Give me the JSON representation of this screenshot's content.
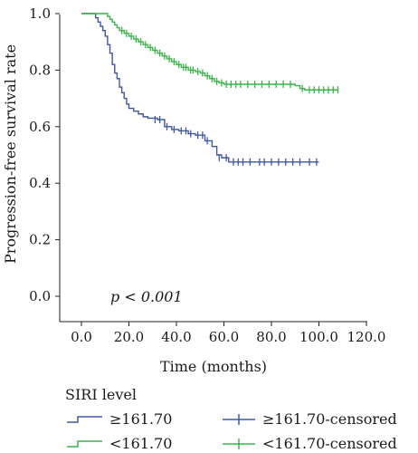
{
  "chart_data": {
    "type": "line",
    "subtype": "kaplan-meier",
    "xlabel": "Time (months)",
    "ylabel": "Progression-free survival rate",
    "xlim": [
      0,
      120
    ],
    "ylim": [
      0,
      1
    ],
    "xticks": [
      "0.0",
      "20.0",
      "40.0",
      "60.0",
      "80.0",
      "100.0",
      "120.0"
    ],
    "yticks": [
      "0.0",
      "0.2",
      "0.4",
      "0.6",
      "0.8",
      "1.0"
    ],
    "grid": false,
    "annotation": "p < 0.001",
    "legend": {
      "title": "SIRI level",
      "placement": "bottom",
      "entries": [
        "≥161.70",
        "<161.70",
        "≥161.70-censored",
        "<161.70-censored"
      ]
    },
    "series": [
      {
        "name": "≥161.70",
        "color": "#3f57a8",
        "steps": [
          [
            0,
            1.0
          ],
          [
            5,
            1.0
          ],
          [
            6,
            0.985
          ],
          [
            7,
            0.97
          ],
          [
            8,
            0.955
          ],
          [
            9,
            0.94
          ],
          [
            10,
            0.92
          ],
          [
            11,
            0.89
          ],
          [
            12,
            0.86
          ],
          [
            13,
            0.82
          ],
          [
            14,
            0.79
          ],
          [
            15,
            0.77
          ],
          [
            16,
            0.74
          ],
          [
            17,
            0.72
          ],
          [
            18,
            0.7
          ],
          [
            19,
            0.68
          ],
          [
            20,
            0.665
          ],
          [
            22,
            0.655
          ],
          [
            24,
            0.645
          ],
          [
            26,
            0.635
          ],
          [
            28,
            0.63
          ],
          [
            32,
            0.625
          ],
          [
            35,
            0.6
          ],
          [
            38,
            0.59
          ],
          [
            41,
            0.585
          ],
          [
            45,
            0.575
          ],
          [
            48,
            0.57
          ],
          [
            52,
            0.55
          ],
          [
            55,
            0.53
          ],
          [
            57,
            0.5
          ],
          [
            59,
            0.49
          ],
          [
            62,
            0.475
          ],
          [
            100,
            0.475
          ]
        ],
        "censored": [
          [
            31,
            0.625
          ],
          [
            33,
            0.625
          ],
          [
            36,
            0.6
          ],
          [
            39,
            0.59
          ],
          [
            42,
            0.585
          ],
          [
            44,
            0.585
          ],
          [
            46,
            0.575
          ],
          [
            49,
            0.57
          ],
          [
            51,
            0.57
          ],
          [
            53,
            0.55
          ],
          [
            58,
            0.49
          ],
          [
            61,
            0.49
          ],
          [
            64,
            0.475
          ],
          [
            66,
            0.475
          ],
          [
            68,
            0.475
          ],
          [
            71,
            0.475
          ],
          [
            75,
            0.475
          ],
          [
            77,
            0.475
          ],
          [
            80,
            0.475
          ],
          [
            83,
            0.475
          ],
          [
            86,
            0.475
          ],
          [
            89,
            0.475
          ],
          [
            92,
            0.475
          ],
          [
            96,
            0.475
          ],
          [
            99,
            0.475
          ]
        ]
      },
      {
        "name": "<161.70",
        "color": "#3bb44a",
        "steps": [
          [
            0,
            1.0
          ],
          [
            10,
            1.0
          ],
          [
            11,
            0.99
          ],
          [
            12,
            0.98
          ],
          [
            13,
            0.97
          ],
          [
            14,
            0.96
          ],
          [
            15,
            0.95
          ],
          [
            16,
            0.94
          ],
          [
            18,
            0.93
          ],
          [
            20,
            0.92
          ],
          [
            22,
            0.91
          ],
          [
            24,
            0.9
          ],
          [
            26,
            0.89
          ],
          [
            28,
            0.88
          ],
          [
            30,
            0.87
          ],
          [
            32,
            0.86
          ],
          [
            34,
            0.85
          ],
          [
            36,
            0.84
          ],
          [
            38,
            0.83
          ],
          [
            40,
            0.82
          ],
          [
            42,
            0.81
          ],
          [
            45,
            0.8
          ],
          [
            48,
            0.795
          ],
          [
            50,
            0.79
          ],
          [
            52,
            0.78
          ],
          [
            54,
            0.77
          ],
          [
            56,
            0.76
          ],
          [
            58,
            0.755
          ],
          [
            60,
            0.75
          ],
          [
            90,
            0.745
          ],
          [
            92,
            0.735
          ],
          [
            94,
            0.73
          ],
          [
            108,
            0.73
          ]
        ],
        "censored": [
          [
            17,
            0.94
          ],
          [
            19,
            0.93
          ],
          [
            21,
            0.92
          ],
          [
            23,
            0.91
          ],
          [
            25,
            0.9
          ],
          [
            27,
            0.89
          ],
          [
            29,
            0.88
          ],
          [
            31,
            0.87
          ],
          [
            33,
            0.86
          ],
          [
            35,
            0.85
          ],
          [
            37,
            0.84
          ],
          [
            39,
            0.83
          ],
          [
            41,
            0.82
          ],
          [
            43,
            0.81
          ],
          [
            44,
            0.81
          ],
          [
            46,
            0.8
          ],
          [
            47,
            0.8
          ],
          [
            49,
            0.795
          ],
          [
            51,
            0.79
          ],
          [
            53,
            0.78
          ],
          [
            55,
            0.77
          ],
          [
            57,
            0.76
          ],
          [
            59,
            0.755
          ],
          [
            61,
            0.75
          ],
          [
            63,
            0.75
          ],
          [
            65,
            0.75
          ],
          [
            67,
            0.75
          ],
          [
            70,
            0.75
          ],
          [
            73,
            0.75
          ],
          [
            76,
            0.75
          ],
          [
            79,
            0.75
          ],
          [
            82,
            0.75
          ],
          [
            85,
            0.75
          ],
          [
            88,
            0.75
          ],
          [
            93,
            0.735
          ],
          [
            96,
            0.73
          ],
          [
            98,
            0.73
          ],
          [
            100,
            0.73
          ],
          [
            102,
            0.73
          ],
          [
            104,
            0.73
          ],
          [
            106,
            0.73
          ],
          [
            108,
            0.73
          ]
        ]
      }
    ]
  }
}
